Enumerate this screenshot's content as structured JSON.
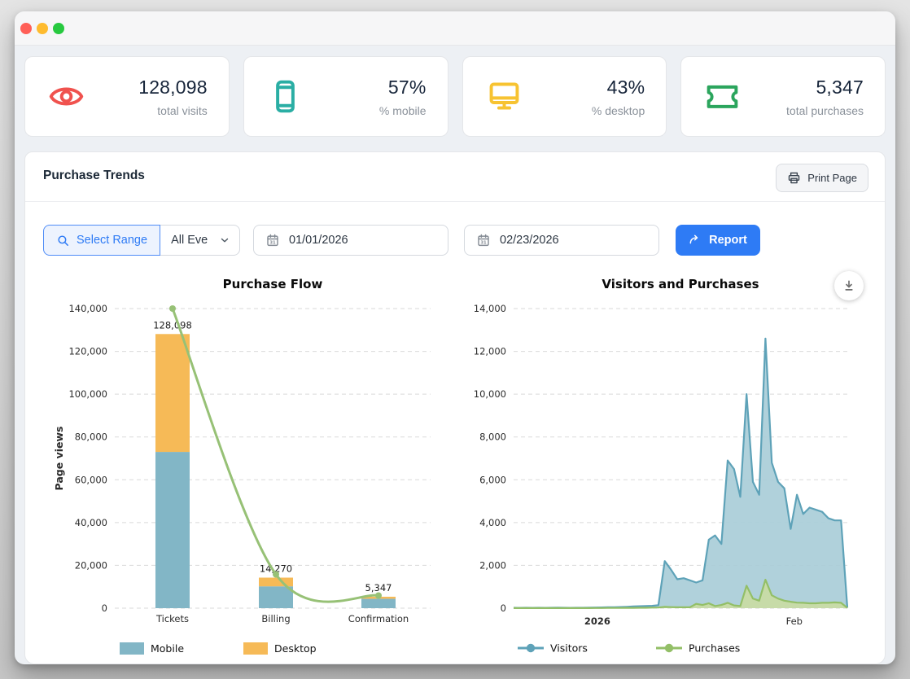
{
  "stats": [
    {
      "icon": "eye-icon",
      "color": "#f0524e",
      "value": "128,098",
      "label": "total visits"
    },
    {
      "icon": "smartphone-icon",
      "color": "#2aaea4",
      "value": "57%",
      "label": "% mobile"
    },
    {
      "icon": "monitor-icon",
      "color": "#f7c331",
      "value": "43%",
      "label": "% desktop"
    },
    {
      "icon": "ticket-icon",
      "color": "#2ba55d",
      "value": "5,347",
      "label": "total purchases"
    }
  ],
  "panel": {
    "title": "Purchase Trends",
    "print_button": "Print Page",
    "filters": {
      "select_range_label": "Select Range",
      "event_dropdown_value": "All Eve",
      "start_date": "01/01/2026",
      "end_date": "02/23/2026",
      "report_button": "Report",
      "calendar_icon_text": "31"
    },
    "accent_color": "#2e7bf5"
  },
  "chart_data": [
    {
      "type": "bar",
      "title": "Purchase Flow",
      "ylabel": "Page views",
      "categories": [
        "Tickets",
        "Billing",
        "Confirmation"
      ],
      "series": [
        {
          "name": "Mobile",
          "color": "#82b6c6",
          "values": [
            73016,
            10200,
            4400
          ]
        },
        {
          "name": "Desktop",
          "color": "#f6ba57",
          "values": [
            55082,
            4070,
            947
          ]
        }
      ],
      "totals_labels": [
        "128,098",
        "14,270",
        "5,347"
      ],
      "line_overlay": {
        "color": "#97c176",
        "values": [
          140000,
          15800,
          5900
        ]
      },
      "ylim": [
        0,
        140000
      ],
      "ytick_step": 20000,
      "grid": true,
      "legend_position": "bottom"
    },
    {
      "type": "area",
      "title": "Visitors and Purchases",
      "ylim": [
        0,
        14000
      ],
      "ytick_step": 2000,
      "x_tick_labels": [
        {
          "label": "2026",
          "pos": 0.251,
          "bold": true
        },
        {
          "label": "Feb",
          "pos": 0.841,
          "bold": false
        }
      ],
      "series": [
        {
          "name": "Visitors",
          "stroke": "#5ea2b8",
          "fill": "#a9cdd8",
          "values": [
            20,
            15,
            18,
            15,
            20,
            15,
            18,
            22,
            18,
            15,
            18,
            20,
            25,
            30,
            35,
            40,
            45,
            55,
            65,
            80,
            90,
            100,
            110,
            140,
            2200,
            1800,
            1350,
            1400,
            1300,
            1200,
            1300,
            3200,
            3400,
            3000,
            6900,
            6500,
            5200,
            10000,
            5900,
            5300,
            12600,
            6800,
            5900,
            5600,
            3700,
            5300,
            4400,
            4700,
            4600,
            4500,
            4200,
            4100,
            4100,
            20
          ]
        },
        {
          "name": "Purchases",
          "stroke": "#93bf67",
          "fill": "#c9dba4",
          "values": [
            5,
            5,
            5,
            5,
            5,
            5,
            5,
            5,
            5,
            5,
            5,
            5,
            5,
            8,
            8,
            10,
            10,
            12,
            15,
            15,
            18,
            20,
            25,
            30,
            60,
            50,
            40,
            45,
            40,
            200,
            150,
            230,
            100,
            150,
            250,
            130,
            100,
            1050,
            450,
            350,
            1330,
            600,
            450,
            350,
            300,
            260,
            250,
            230,
            230,
            250,
            250,
            270,
            250,
            10
          ]
        }
      ],
      "grid": true,
      "legend_position": "bottom"
    }
  ]
}
